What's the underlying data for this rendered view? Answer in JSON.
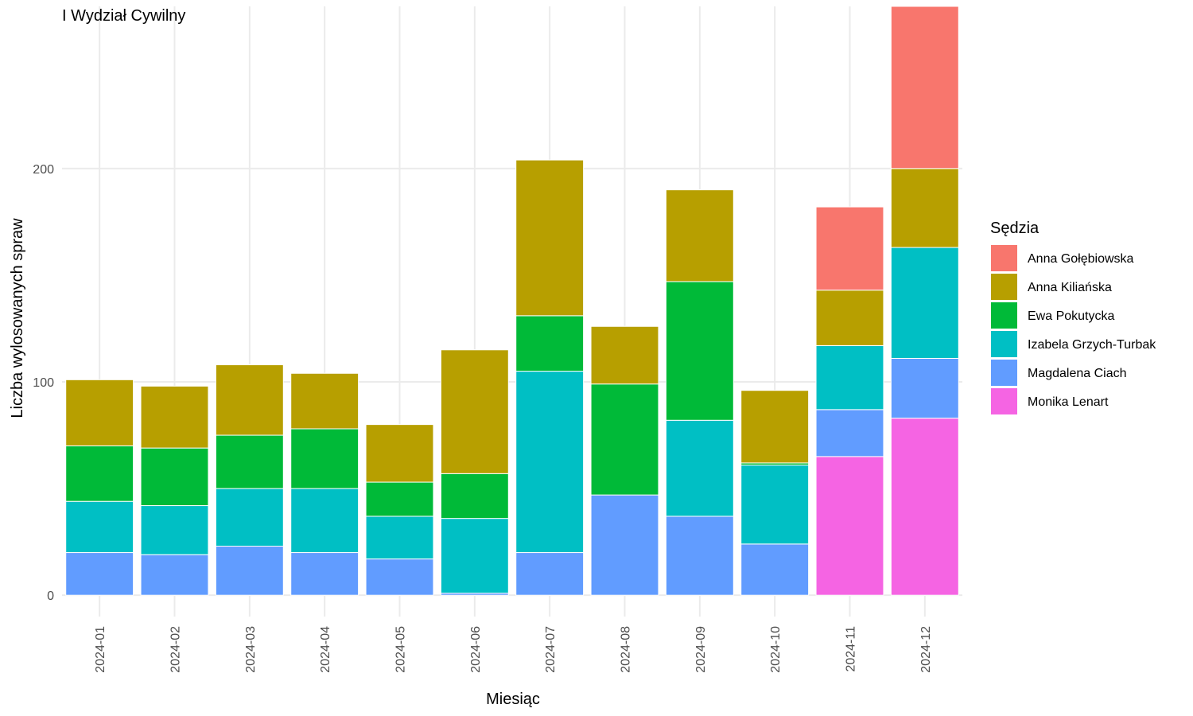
{
  "chart_data": {
    "type": "bar",
    "stacked": true,
    "title": "I Wydział Cywilny",
    "xlabel": "Miesiąc",
    "ylabel": "Liczba wylosowanych spraw",
    "ylim": [
      -10,
      276
    ],
    "yticks": [
      0,
      100,
      200
    ],
    "grid": true,
    "legend_title": "Sędzia",
    "legend_position": "right",
    "categories": [
      "2024-01",
      "2024-02",
      "2024-03",
      "2024-04",
      "2024-05",
      "2024-06",
      "2024-07",
      "2024-08",
      "2024-09",
      "2024-10",
      "2024-11",
      "2024-12"
    ],
    "series": [
      {
        "name": "Monika Lenart",
        "color": "#F564E3",
        "values": [
          0,
          0,
          0,
          0,
          0,
          0,
          0,
          0,
          0,
          0,
          65,
          83
        ]
      },
      {
        "name": "Magdalena Ciach",
        "color": "#619CFF",
        "values": [
          20,
          19,
          23,
          20,
          17,
          1,
          20,
          47,
          37,
          24,
          22,
          28
        ]
      },
      {
        "name": "Izabela Grzych-Turbak",
        "color": "#00BFC4",
        "values": [
          24,
          23,
          27,
          30,
          20,
          35,
          85,
          0,
          45,
          37,
          30,
          52
        ]
      },
      {
        "name": "Ewa Pokutycka",
        "color": "#00BA38",
        "values": [
          26,
          27,
          25,
          28,
          16,
          21,
          26,
          52,
          65,
          1,
          0,
          0
        ]
      },
      {
        "name": "Anna Kiliańska",
        "color": "#B79F00",
        "values": [
          31,
          29,
          33,
          26,
          27,
          58,
          73,
          27,
          43,
          34,
          26,
          37
        ]
      },
      {
        "name": "Anna Gołębiowska",
        "color": "#F8766D",
        "values": [
          0,
          0,
          0,
          0,
          0,
          0,
          0,
          0,
          0,
          0,
          39,
          76
        ]
      }
    ],
    "legend_order": [
      "Anna Gołębiowska",
      "Anna Kiliańska",
      "Ewa Pokutycka",
      "Izabela Grzych-Turbak",
      "Magdalena Ciach",
      "Monika Lenart"
    ]
  }
}
